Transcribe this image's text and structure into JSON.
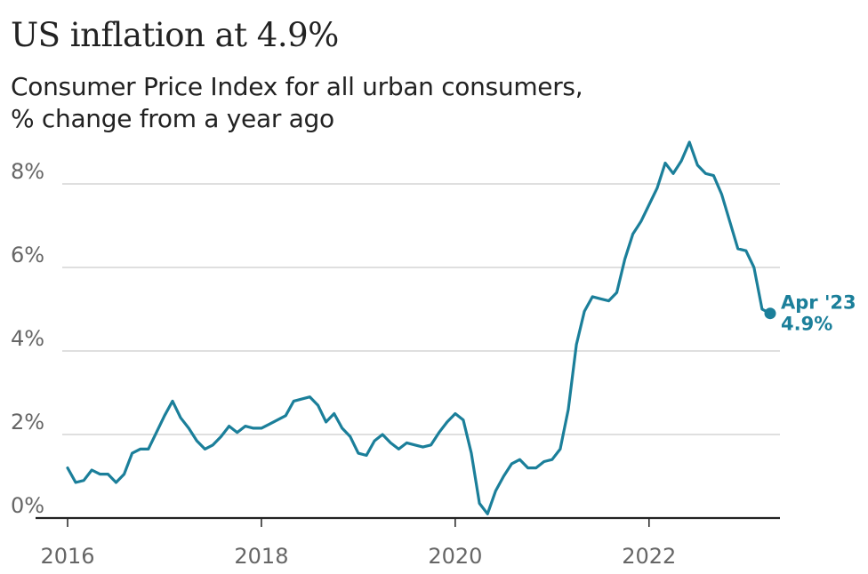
{
  "chart_data": {
    "type": "line",
    "title": "US inflation at 4.9%",
    "subtitle_lines": [
      "Consumer Price Index for all urban consumers,",
      "% change from a year ago"
    ],
    "x_start": "2016-01",
    "x_end": "2023-04",
    "xlim": [
      "2016-01",
      "2023-04"
    ],
    "ylim": [
      0,
      9
    ],
    "yticks": [
      0,
      2,
      4,
      6,
      8
    ],
    "ytick_labels": [
      "0%",
      "2%",
      "4%",
      "6%",
      "8%"
    ],
    "xticks": [
      "2016-01",
      "2018-01",
      "2020-01",
      "2022-01"
    ],
    "xtick_labels": [
      "2016",
      "2018",
      "2020",
      "2022"
    ],
    "grid": true,
    "series": [
      {
        "values": [
          1.2,
          0.85,
          0.9,
          1.15,
          1.05,
          1.05,
          0.85,
          1.05,
          1.55,
          1.65,
          1.65,
          2.05,
          2.45,
          2.8,
          2.4,
          2.15,
          1.85,
          1.65,
          1.75,
          1.95,
          2.2,
          2.05,
          2.2,
          2.15,
          2.15,
          2.25,
          2.35,
          2.45,
          2.8,
          2.85,
          2.9,
          2.7,
          2.3,
          2.5,
          2.15,
          1.95,
          1.55,
          1.5,
          1.85,
          2.0,
          1.8,
          1.65,
          1.8,
          1.75,
          1.7,
          1.75,
          2.05,
          2.3,
          2.5,
          2.35,
          1.55,
          0.35,
          0.1,
          0.65,
          1.0,
          1.3,
          1.4,
          1.2,
          1.2,
          1.35,
          1.4,
          1.65,
          2.6,
          4.15,
          4.95,
          5.3,
          5.25,
          5.2,
          5.4,
          6.2,
          6.8,
          7.1,
          7.5,
          7.9,
          8.5,
          8.25,
          8.55,
          9.0,
          8.45,
          8.25,
          8.2,
          7.75,
          7.1,
          6.45,
          6.4,
          6.0,
          5.0,
          4.9
        ]
      }
    ],
    "annotation": {
      "label": "Apr '23",
      "value_label": "4.9%",
      "x": "2023-04",
      "y": 4.9
    },
    "colors": {
      "line": "#1b7f9a",
      "grid": "#cccccc",
      "axis": "#222222",
      "label": "#666666"
    }
  }
}
